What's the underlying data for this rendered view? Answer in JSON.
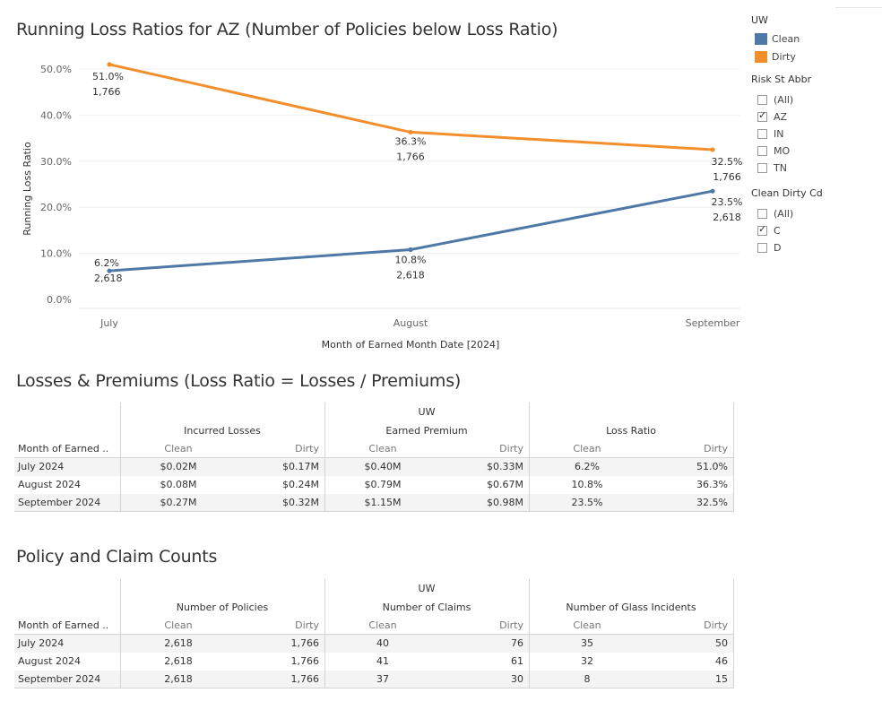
{
  "chart_title": "Running Loss Ratios for AZ (Number of Policies below Loss Ratio)",
  "chart_data": {
    "type": "line",
    "title": "Running Loss Ratios for AZ (Number of Policies below Loss Ratio)",
    "xlabel": "Month of Earned Month Date [2024]",
    "ylabel": "Running Loss Ratio",
    "categories": [
      "July",
      "August",
      "September"
    ],
    "y_ticks": [
      "0.0%",
      "10.0%",
      "20.0%",
      "30.0%",
      "40.0%",
      "50.0%"
    ],
    "ylim": [
      0,
      50
    ],
    "series": [
      {
        "name": "Dirty",
        "color": "#f28e2b",
        "values": [
          51.0,
          36.3,
          32.5
        ],
        "labels": [
          "51.0%",
          "36.3%",
          "32.5%"
        ],
        "counts": [
          "1,766",
          "1,766",
          "1,766"
        ]
      },
      {
        "name": "Clean",
        "color": "#4e79a7",
        "values": [
          6.2,
          10.8,
          23.5
        ],
        "labels": [
          "6.2%",
          "10.8%",
          "23.5%"
        ],
        "counts": [
          "2,618",
          "2,618",
          "2,618"
        ]
      }
    ]
  },
  "legend": {
    "title": "UW",
    "items": [
      {
        "label": "Clean",
        "color": "#4e79a7"
      },
      {
        "label": "Dirty",
        "color": "#f28e2b"
      }
    ]
  },
  "filters": {
    "risk_state": {
      "title": "Risk St Abbr",
      "options": [
        {
          "label": "(All)",
          "checked": false
        },
        {
          "label": "AZ",
          "checked": true
        },
        {
          "label": "IN",
          "checked": false
        },
        {
          "label": "MO",
          "checked": false
        },
        {
          "label": "TN",
          "checked": false
        }
      ]
    },
    "clean_dirty": {
      "title": "Clean Dirty Cd",
      "options": [
        {
          "label": "(All)",
          "checked": false
        },
        {
          "label": "C",
          "checked": true
        },
        {
          "label": "D",
          "checked": false
        }
      ]
    }
  },
  "losses_table": {
    "title": "Losses & Premiums (Loss Ratio = Losses / Premiums)",
    "uw_label": "UW",
    "row_header": "Month of Earned ..",
    "groups": [
      "Incurred Losses",
      "Earned Premium",
      "Loss Ratio"
    ],
    "sub": [
      "Clean",
      "Dirty",
      "Clean",
      "Dirty",
      "Clean",
      "Dirty"
    ],
    "rows": [
      {
        "label": "July 2024",
        "values": [
          "$0.02M",
          "$0.17M",
          "$0.40M",
          "$0.33M",
          "6.2%",
          "51.0%"
        ]
      },
      {
        "label": "August 2024",
        "values": [
          "$0.08M",
          "$0.24M",
          "$0.79M",
          "$0.67M",
          "10.8%",
          "36.3%"
        ]
      },
      {
        "label": "September 2024",
        "values": [
          "$0.27M",
          "$0.32M",
          "$1.15M",
          "$0.98M",
          "23.5%",
          "32.5%"
        ]
      }
    ]
  },
  "counts_table": {
    "title": "Policy and Claim Counts",
    "uw_label": "UW",
    "row_header": "Month of Earned ..",
    "groups": [
      "Number of Policies",
      "Number of Claims",
      "Number of Glass Incidents"
    ],
    "sub": [
      "Clean",
      "Dirty",
      "Clean",
      "Dirty",
      "Clean",
      "Dirty"
    ],
    "rows": [
      {
        "label": "July 2024",
        "values": [
          "2,618",
          "1,766",
          "40",
          "76",
          "35",
          "50"
        ]
      },
      {
        "label": "August 2024",
        "values": [
          "2,618",
          "1,766",
          "41",
          "61",
          "32",
          "46"
        ]
      },
      {
        "label": "September 2024",
        "values": [
          "2,618",
          "1,766",
          "37",
          "30",
          "8",
          "15"
        ]
      }
    ]
  }
}
